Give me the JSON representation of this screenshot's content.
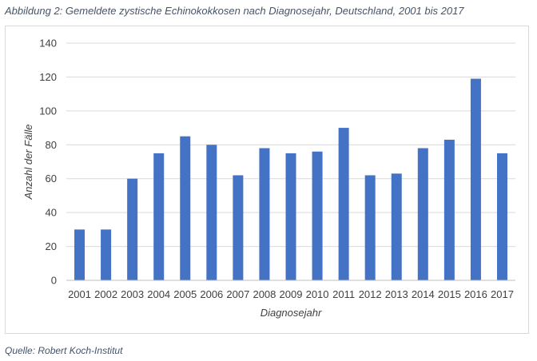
{
  "caption": "Abbildung 2: Gemeldete zystische Echinokokkosen nach Diagnosejahr, Deutschland, 2001 bis 2017",
  "source": "Quelle: Robert Koch-Institut",
  "colors": {
    "bar": "#4472c4",
    "grid": "#d9d9d9",
    "axis": "#bfbfbf"
  },
  "chart_data": {
    "type": "bar",
    "categories": [
      "2001",
      "2002",
      "2003",
      "2004",
      "2005",
      "2006",
      "2007",
      "2008",
      "2009",
      "2010",
      "2011",
      "2012",
      "2013",
      "2014",
      "2015",
      "2016",
      "2017"
    ],
    "values": [
      30,
      30,
      60,
      75,
      85,
      80,
      62,
      78,
      75,
      76,
      90,
      62,
      63,
      78,
      83,
      119,
      75
    ],
    "xlabel": "Diagnosejahr",
    "ylabel": "Anzahl der Fälle",
    "ylim": [
      0,
      140
    ],
    "yticks": [
      0,
      20,
      40,
      60,
      80,
      100,
      120,
      140
    ],
    "grid": true,
    "legend": "none"
  }
}
